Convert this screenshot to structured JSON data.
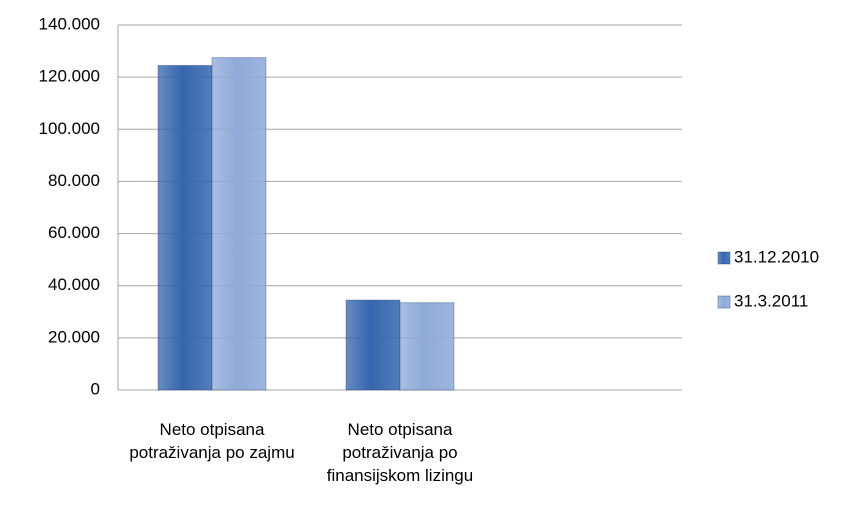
{
  "chart_data": {
    "type": "bar",
    "categories": [
      "Neto otpisana potraživanja po zajmu",
      "Neto otpisana potraživanja po finansijskom lizingu",
      null
    ],
    "series": [
      {
        "name": "31.12.2010",
        "color": "#3566ad",
        "values": [
          124500,
          34500,
          null
        ]
      },
      {
        "name": "31.3.2011",
        "color": "#8eaad8",
        "values": [
          127500,
          33500,
          null
        ]
      }
    ],
    "ylim": [
      0,
      140000
    ],
    "yticks": [
      0,
      {
        "value": 20000,
        "label": "20.000"
      },
      {
        "value": 40000,
        "label": "40.000"
      },
      {
        "value": 60000,
        "label": "60.000"
      },
      {
        "value": 80000,
        "label": "80.000"
      },
      {
        "value": 100000,
        "label": "100.000"
      },
      {
        "value": 120000,
        "label": "120.000"
      },
      {
        "value": 140000,
        "label": "140.000"
      }
    ],
    "grid": true,
    "legend": "right"
  }
}
